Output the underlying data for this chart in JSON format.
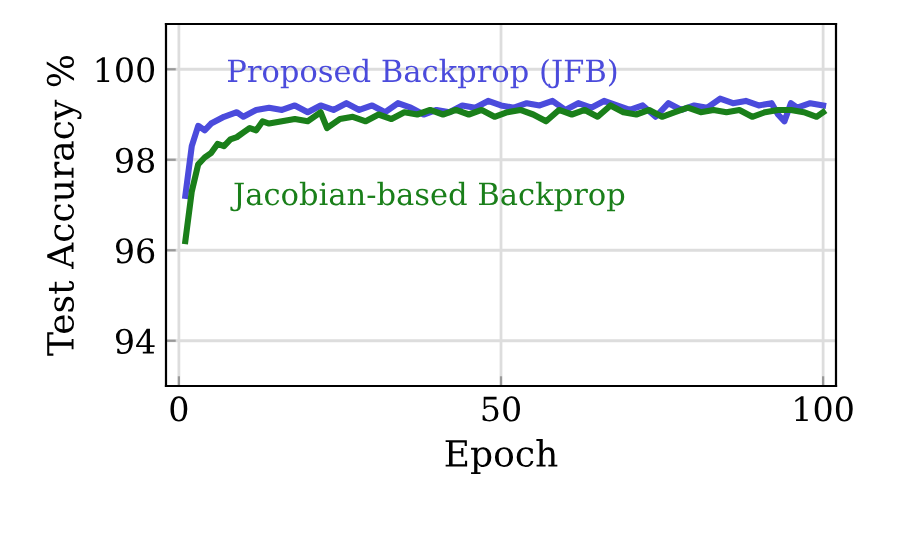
{
  "chart_data": {
    "type": "line",
    "xlabel": "Epoch",
    "ylabel": "Test Accuracy %",
    "xlim": [
      -2,
      102
    ],
    "ylim": [
      93,
      101
    ],
    "xticks": [
      0,
      50,
      100
    ],
    "yticks": [
      94,
      96,
      98,
      100
    ],
    "grid": true,
    "legend": false,
    "marker": "none",
    "line_style": "solid",
    "series": [
      {
        "name": "Proposed Backprop (JFB)",
        "color": "#4b4bdc",
        "x": [
          1,
          2,
          3,
          4,
          5,
          7,
          9,
          10,
          12,
          14,
          16,
          18,
          20,
          22,
          24,
          26,
          28,
          30,
          32,
          34,
          36,
          38,
          40,
          42,
          44,
          46,
          48,
          50,
          52,
          54,
          56,
          58,
          60,
          62,
          64,
          66,
          68,
          70,
          72,
          74,
          76,
          78,
          80,
          82,
          84,
          86,
          88,
          90,
          92,
          93,
          94,
          95,
          96,
          98,
          100
        ],
        "values": [
          97.2,
          98.3,
          98.75,
          98.65,
          98.8,
          98.95,
          99.05,
          98.95,
          99.1,
          99.15,
          99.1,
          99.2,
          99.05,
          99.2,
          99.1,
          99.25,
          99.1,
          99.2,
          99.05,
          99.25,
          99.15,
          99.0,
          99.1,
          99.05,
          99.2,
          99.15,
          99.3,
          99.2,
          99.15,
          99.25,
          99.2,
          99.3,
          99.1,
          99.25,
          99.15,
          99.3,
          99.2,
          99.1,
          99.2,
          98.95,
          99.25,
          99.1,
          99.2,
          99.15,
          99.35,
          99.25,
          99.3,
          99.2,
          99.25,
          99.0,
          98.85,
          99.25,
          99.15,
          99.25,
          99.2
        ]
      },
      {
        "name": "Jacobian-based Backprop",
        "color": "#1a7f1a",
        "x": [
          1,
          2,
          3,
          4,
          5,
          6,
          7,
          8,
          9,
          10,
          11,
          12,
          13,
          14,
          16,
          18,
          20,
          22,
          23,
          25,
          27,
          29,
          31,
          33,
          35,
          37,
          39,
          41,
          43,
          45,
          47,
          49,
          51,
          53,
          55,
          57,
          59,
          61,
          63,
          65,
          67,
          69,
          71,
          73,
          75,
          77,
          79,
          81,
          83,
          85,
          87,
          89,
          91,
          93,
          95,
          97,
          99,
          100
        ],
        "values": [
          96.2,
          97.3,
          97.9,
          98.05,
          98.15,
          98.35,
          98.3,
          98.45,
          98.5,
          98.6,
          98.7,
          98.65,
          98.85,
          98.8,
          98.85,
          98.9,
          98.85,
          99.05,
          98.7,
          98.9,
          98.95,
          98.85,
          99.0,
          98.9,
          99.05,
          99.0,
          99.1,
          99.0,
          99.1,
          99.0,
          99.1,
          98.95,
          99.05,
          99.1,
          99.0,
          98.85,
          99.1,
          99.0,
          99.1,
          98.95,
          99.2,
          99.05,
          99.0,
          99.1,
          98.95,
          99.05,
          99.15,
          99.05,
          99.1,
          99.05,
          99.1,
          98.95,
          99.05,
          99.1,
          99.1,
          99.05,
          98.95,
          99.05
        ]
      }
    ]
  }
}
